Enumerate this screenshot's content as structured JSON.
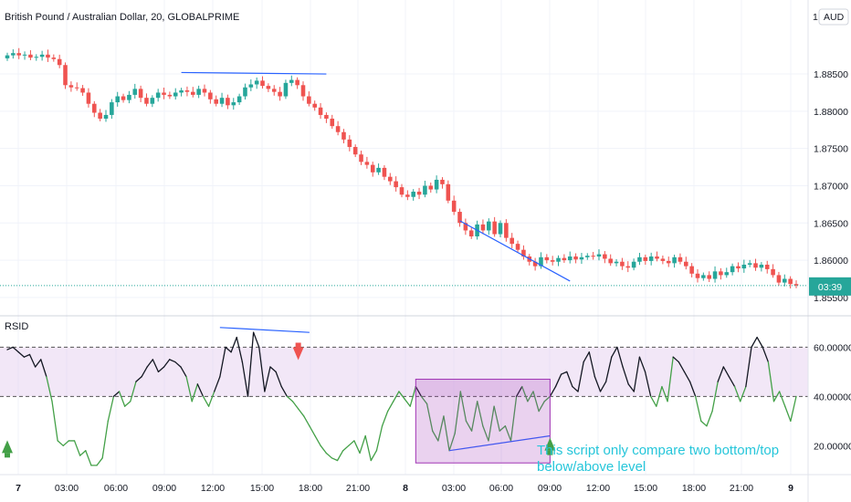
{
  "chart_data": [
    {
      "type": "candlestick",
      "title": "British Pound / Australian Dollar, 20, GLOBALPRIME",
      "currency_label": "AUD",
      "currency_prefix": "1.",
      "y_ticks": [
        "1.88500",
        "1.88000",
        "1.87500",
        "1.87000",
        "1.86500",
        "1.86000",
        "1.85500"
      ],
      "ylim": [
        1.8545,
        1.8915
      ],
      "current_price": 1.8566,
      "countdown": "03:39",
      "x_ticks": [
        "7",
        "03:00",
        "06:00",
        "09:00",
        "12:00",
        "15:00",
        "18:00",
        "21:00",
        "8",
        "03:00",
        "06:00",
        "09:00",
        "12:00",
        "15:00",
        "18:00",
        "21:00",
        "9"
      ],
      "x_ticks_bold": [
        "7",
        "8",
        "9"
      ],
      "close": [
        1.8875,
        1.8878,
        1.8875,
        1.8876,
        1.8872,
        1.8873,
        1.8876,
        1.8872,
        1.887,
        1.8862,
        1.8835,
        1.8832,
        1.8831,
        1.8825,
        1.881,
        1.8798,
        1.879,
        1.8795,
        1.8812,
        1.882,
        1.8815,
        1.8822,
        1.883,
        1.8818,
        1.881,
        1.8818,
        1.8825,
        1.8822,
        1.882,
        1.8825,
        1.8828,
        1.8826,
        1.8822,
        1.883,
        1.8825,
        1.8816,
        1.881,
        1.8818,
        1.8808,
        1.8812,
        1.882,
        1.8832,
        1.8836,
        1.8841,
        1.8834,
        1.883,
        1.8826,
        1.882,
        1.8838,
        1.8842,
        1.8835,
        1.882,
        1.881,
        1.8805,
        1.8795,
        1.879,
        1.878,
        1.8772,
        1.8762,
        1.8752,
        1.8742,
        1.8732,
        1.8728,
        1.8718,
        1.8724,
        1.8712,
        1.8706,
        1.8698,
        1.8688,
        1.8685,
        1.8692,
        1.8688,
        1.87,
        1.8695,
        1.8708,
        1.8702,
        1.868,
        1.8665,
        1.865,
        1.864,
        1.8632,
        1.8648,
        1.864,
        1.8652,
        1.8635,
        1.865,
        1.863,
        1.8622,
        1.8614,
        1.8605,
        1.8598,
        1.8592,
        1.8604,
        1.86,
        1.8598,
        1.8603,
        1.86,
        1.8605,
        1.8601,
        1.8604,
        1.8606,
        1.8605,
        1.8608,
        1.8602,
        1.8596,
        1.8598,
        1.8592,
        1.859,
        1.8598,
        1.8604,
        1.8599,
        1.8605,
        1.8602,
        1.8599,
        1.8596,
        1.8604,
        1.8598,
        1.8592,
        1.8582,
        1.8576,
        1.858,
        1.8575,
        1.8585,
        1.858,
        1.8584,
        1.8592,
        1.8589,
        1.8594,
        1.8596,
        1.859,
        1.8594,
        1.8588,
        1.858,
        1.857,
        1.8575,
        1.8568,
        1.8566
      ],
      "annotations": [
        {
          "type": "trendline",
          "pane": "price",
          "from": [
            30,
            1.8852
          ],
          "to": [
            55,
            1.885
          ]
        },
        {
          "type": "trendline",
          "pane": "price",
          "from": [
            78,
            1.8653
          ],
          "to": [
            97,
            1.8572
          ]
        }
      ]
    },
    {
      "type": "line",
      "title": "RSID",
      "y_ticks": [
        "60.00000",
        "40.00000",
        "20.00000"
      ],
      "ylim": [
        9,
        72
      ],
      "band": [
        40,
        60
      ],
      "values": [
        59,
        60,
        58,
        56,
        57,
        52,
        55,
        48,
        38,
        22,
        20,
        22,
        22,
        16,
        18,
        12,
        12,
        15,
        30,
        40,
        42,
        36,
        38,
        46,
        48,
        52,
        55,
        50,
        52,
        55,
        54,
        52,
        48,
        38,
        45,
        40,
        36,
        42,
        48,
        60,
        58,
        64,
        54,
        40,
        66,
        60,
        42,
        52,
        50,
        44,
        40,
        38,
        35,
        32,
        28,
        24,
        20,
        17,
        15,
        14,
        18,
        20,
        22,
        17,
        24,
        14,
        18,
        28,
        34,
        38,
        42,
        39,
        36,
        44,
        40,
        37,
        26,
        22,
        32,
        18,
        25,
        42,
        30,
        26,
        38,
        28,
        22,
        36,
        26,
        28,
        22,
        40,
        44,
        38,
        42,
        34,
        38,
        40,
        44,
        49,
        50,
        44,
        42,
        54,
        58,
        48,
        42,
        46,
        56,
        60,
        52,
        45,
        42,
        56,
        50,
        40,
        36,
        44,
        38,
        56,
        54,
        50,
        46,
        40,
        30,
        28,
        34,
        46,
        52,
        48,
        44,
        38,
        44,
        60,
        64,
        60,
        54,
        38,
        42,
        36,
        30,
        40
      ],
      "annotations": [
        {
          "type": "trendline",
          "from": [
            38,
            68
          ],
          "to": [
            54,
            66
          ]
        },
        {
          "type": "trendline",
          "from": [
            79,
            18
          ],
          "to": [
            97,
            24
          ]
        },
        {
          "type": "rect",
          "x": [
            73,
            97
          ],
          "y": [
            13,
            47
          ]
        },
        {
          "type": "arrow-up",
          "index": 0,
          "value": 20
        },
        {
          "type": "arrow-down",
          "index": 52,
          "value": 57
        },
        {
          "type": "arrow-up",
          "index": 97,
          "value": 21
        },
        {
          "type": "text",
          "lines": [
            "This script only compare two bottom/top",
            "below/above level"
          ]
        }
      ]
    }
  ],
  "colors": {
    "bull": "#26a69a",
    "bear": "#ef5350",
    "trendline": "#2962ff",
    "rsi_up": "#131722",
    "rsi_down": "#43a047",
    "rsi_peak": "#ef5350",
    "band": "#e8d4f0",
    "box": "#a033b4",
    "annotation_text": "#26c6da",
    "price_line": "#26a69a"
  }
}
